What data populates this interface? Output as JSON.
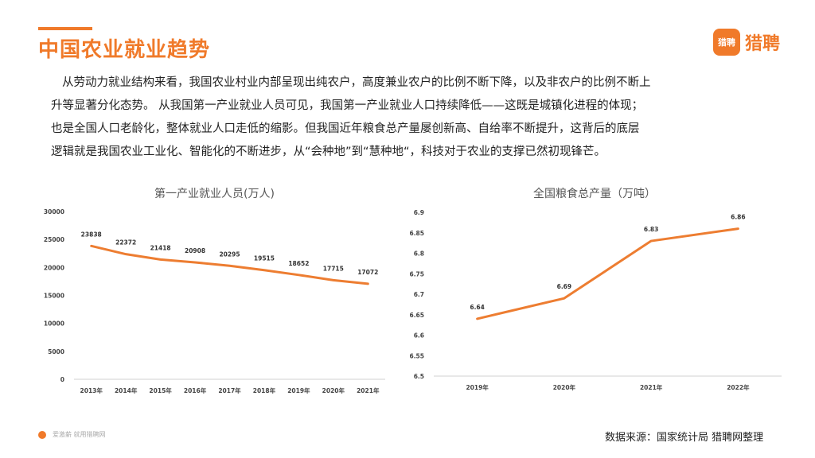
{
  "header": {
    "title": "中国农业就业趋势"
  },
  "logo": {
    "icon_label": "猎聘",
    "text": "猎聘"
  },
  "paragraph": [
    "从劳动力就业结构来看，我国农业村业内部呈现出纯农户，高度兼业农户的比例不断下降，以及非农户的比例不断上",
    "升等显著分化态势。 从我国第一产业就业人员可见，我国第一产业就业人口持续降低——这既是城镇化进程的体现；",
    "也是全国人口老龄化，整体就业人口走低的缩影。但我国近年粮食总产量屡创新高、自给率不断提升，这背后的底层",
    "逻辑就是我国农业工业化、智能化的不断进步，从“会种地”到“慧种地“，科技对于农业的支撑已然初现锋芒。"
  ],
  "chart_data": [
    {
      "type": "line",
      "title": "第一产业就业人员(万人)",
      "categories": [
        "2013年",
        "2014年",
        "2015年",
        "2016年",
        "2017年",
        "2018年",
        "2019年",
        "2020年",
        "2021年"
      ],
      "values": [
        23838,
        22372,
        21418,
        20908,
        20295,
        19515,
        18652,
        17715,
        17072
      ],
      "data_labels": [
        "23838",
        "22372",
        "21418",
        "20908",
        "20295",
        "19515",
        "18652",
        "17715",
        "17072"
      ],
      "ylim": [
        0,
        30000
      ],
      "yticks": [
        0,
        5000,
        10000,
        15000,
        20000,
        25000,
        30000
      ],
      "ytick_labels": [
        "0",
        "5000",
        "10000",
        "15000",
        "20000",
        "25000",
        "30000"
      ],
      "color": "#ed7d31"
    },
    {
      "type": "line",
      "title": "全国粮食总产量（万吨）",
      "categories": [
        "2019年",
        "2020年",
        "2021年",
        "2022年"
      ],
      "values": [
        6.64,
        6.69,
        6.83,
        6.86
      ],
      "data_labels": [
        "6.64",
        "6.69",
        "6.83",
        "6.86"
      ],
      "ylim": [
        6.5,
        6.9
      ],
      "yticks": [
        6.5,
        6.55,
        6.6,
        6.65,
        6.7,
        6.75,
        6.8,
        6.85,
        6.9
      ],
      "ytick_labels": [
        "6.5",
        "6.55",
        "6.6",
        "6.65",
        "6.7",
        "6.75",
        "6.8",
        "6.85",
        "6.9"
      ],
      "color": "#ed7d31"
    }
  ],
  "footer": {
    "left_text": "爱激薪 就用猎聘网",
    "source": "数据来源：国家统计局 猎聘网整理"
  }
}
